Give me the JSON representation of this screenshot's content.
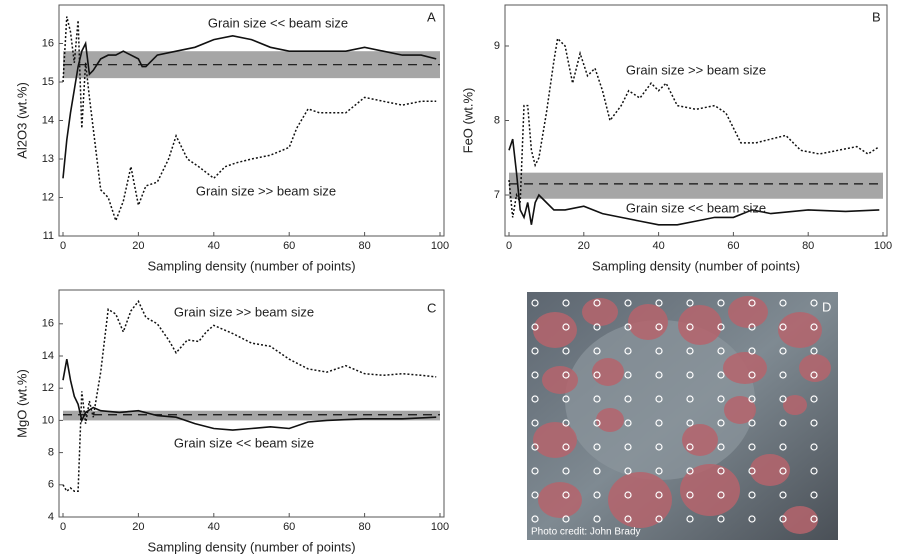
{
  "chart_data": [
    {
      "type": "line",
      "panel": "A",
      "ylabel": "Al2O3 (wt.%)",
      "xlabel": "Sampling density (number of points)",
      "xlim": [
        0,
        100
      ],
      "xticks": [
        0,
        20,
        40,
        60,
        80,
        100
      ],
      "ylim": [
        11,
        17
      ],
      "yticks": [
        11,
        12,
        13,
        14,
        15,
        16
      ],
      "reference": {
        "value": 15.45,
        "band": [
          15.1,
          15.8
        ]
      },
      "annotations": [
        "Grain size << beam size",
        "Grain size >> beam size"
      ],
      "series": [
        {
          "color": "#111",
          "style": "solid",
          "x": [
            0,
            1,
            2,
            3,
            4,
            5,
            6,
            7,
            8,
            10,
            12,
            14,
            16,
            18,
            20,
            21,
            22,
            25,
            30,
            35,
            40,
            45,
            50,
            55,
            60,
            65,
            70,
            75,
            80,
            85,
            90,
            95,
            99
          ],
          "values": [
            12.5,
            13.5,
            14.2,
            14.8,
            15.4,
            15.8,
            16.0,
            15.2,
            15.3,
            15.6,
            15.7,
            15.7,
            15.8,
            15.7,
            15.6,
            15.4,
            15.4,
            15.7,
            15.8,
            15.9,
            16.1,
            16.2,
            16.1,
            15.9,
            15.8,
            15.8,
            15.8,
            15.8,
            15.9,
            15.8,
            15.7,
            15.7,
            15.6
          ]
        },
        {
          "color": "#111",
          "style": "dotted",
          "x": [
            0,
            1,
            2,
            3,
            4,
            5,
            6,
            7,
            8,
            10,
            12,
            14,
            16,
            18,
            20,
            22,
            25,
            28,
            30,
            33,
            36,
            40,
            43,
            46,
            50,
            55,
            60,
            62,
            65,
            68,
            72,
            75,
            80,
            85,
            90,
            95,
            99
          ],
          "values": [
            15.0,
            16.7,
            16.3,
            15.5,
            16.6,
            13.8,
            15.5,
            14.6,
            13.8,
            12.2,
            12.0,
            11.4,
            11.9,
            12.8,
            11.8,
            12.3,
            12.4,
            13.0,
            13.6,
            13.0,
            12.8,
            12.5,
            12.8,
            12.9,
            13.0,
            13.1,
            13.3,
            13.8,
            14.3,
            14.2,
            14.2,
            14.2,
            14.6,
            14.5,
            14.4,
            14.5,
            14.5
          ]
        }
      ]
    },
    {
      "type": "line",
      "panel": "B",
      "ylabel": "FeO (wt.%)",
      "xlabel": "Sampling density (number of points)",
      "xlim": [
        0,
        100
      ],
      "xticks": [
        0,
        20,
        40,
        60,
        80,
        100
      ],
      "ylim": [
        6.45,
        9.55
      ],
      "yticks": [
        7,
        8,
        9
      ],
      "reference": {
        "value": 7.15,
        "band": [
          6.95,
          7.3
        ]
      },
      "annotations": [
        "Grain size >> beam size",
        "Grain size << beam size"
      ],
      "series": [
        {
          "color": "#111",
          "style": "solid",
          "x": [
            0,
            1,
            2,
            3,
            4,
            5,
            6,
            7,
            8,
            10,
            12,
            15,
            20,
            25,
            30,
            35,
            40,
            45,
            50,
            55,
            60,
            65,
            70,
            80,
            90,
            99
          ],
          "values": [
            7.6,
            7.75,
            7.3,
            6.8,
            6.7,
            6.9,
            6.6,
            6.9,
            7.0,
            6.9,
            6.8,
            6.8,
            6.85,
            6.75,
            6.7,
            6.65,
            6.6,
            6.6,
            6.65,
            6.7,
            6.7,
            6.8,
            6.75,
            6.8,
            6.78,
            6.8
          ]
        },
        {
          "color": "#111",
          "style": "dotted",
          "x": [
            0,
            1,
            2,
            3,
            4,
            5,
            6,
            7,
            8,
            10,
            12,
            13,
            15,
            17,
            19,
            21,
            23,
            25,
            27,
            30,
            32,
            35,
            38,
            40,
            42,
            45,
            50,
            55,
            58,
            62,
            66,
            70,
            74,
            78,
            83,
            88,
            93,
            96,
            99
          ],
          "values": [
            7.2,
            6.7,
            7.0,
            6.9,
            8.2,
            8.2,
            7.6,
            7.4,
            7.5,
            8.1,
            8.8,
            9.1,
            9.0,
            8.5,
            8.9,
            8.6,
            8.7,
            8.4,
            8.0,
            8.2,
            8.4,
            8.3,
            8.5,
            8.4,
            8.5,
            8.2,
            8.15,
            8.2,
            8.1,
            7.7,
            7.7,
            7.75,
            7.8,
            7.6,
            7.55,
            7.6,
            7.65,
            7.55,
            7.65
          ]
        }
      ]
    },
    {
      "type": "line",
      "panel": "C",
      "ylabel": "MgO (wt.%)",
      "xlabel": "Sampling density (number of points)",
      "xlim": [
        0,
        100
      ],
      "xticks": [
        0,
        20,
        40,
        60,
        80,
        100
      ],
      "ylim": [
        4,
        18.1
      ],
      "yticks": [
        4,
        6,
        8,
        10,
        12,
        14,
        16
      ],
      "reference": {
        "value": 10.35,
        "band": [
          10.0,
          10.6
        ]
      },
      "annotations": [
        "Grain size >> beam size",
        "Grain size << beam size"
      ],
      "series": [
        {
          "color": "#111",
          "style": "solid",
          "x": [
            0,
            1,
            2,
            3,
            4,
            5,
            6,
            8,
            10,
            15,
            20,
            25,
            30,
            35,
            40,
            45,
            50,
            55,
            60,
            65,
            70,
            80,
            90,
            99
          ],
          "values": [
            12.5,
            13.8,
            12.5,
            11.5,
            11.0,
            10.0,
            10.5,
            10.8,
            10.6,
            10.5,
            10.6,
            10.3,
            10.2,
            9.8,
            9.5,
            9.4,
            9.5,
            9.6,
            9.5,
            9.9,
            10.0,
            10.1,
            10.1,
            10.2
          ]
        },
        {
          "color": "#111",
          "style": "dotted",
          "x": [
            0,
            1,
            2,
            3,
            4,
            5,
            6,
            7,
            8,
            10,
            12,
            14,
            16,
            18,
            20,
            22,
            25,
            28,
            30,
            33,
            36,
            38,
            40,
            45,
            50,
            55,
            60,
            65,
            70,
            75,
            80,
            85,
            90,
            95,
            99
          ],
          "values": [
            6.0,
            5.6,
            5.8,
            5.6,
            5.6,
            11.8,
            9.8,
            11.2,
            10.2,
            13.0,
            16.9,
            16.6,
            15.5,
            16.8,
            17.4,
            16.4,
            16.0,
            15.0,
            14.2,
            15.0,
            14.9,
            15.5,
            15.9,
            15.4,
            14.8,
            14.6,
            13.8,
            13.2,
            13.0,
            13.4,
            12.9,
            12.8,
            12.9,
            12.8,
            12.7
          ]
        }
      ]
    }
  ],
  "photo": {
    "panel": "D",
    "credit": "Photo credit: John Brady"
  }
}
